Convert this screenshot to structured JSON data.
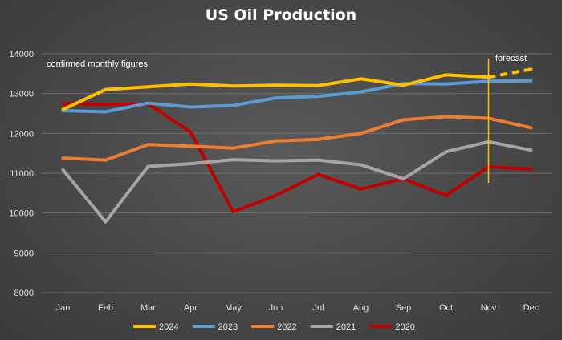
{
  "chart_data": {
    "type": "line",
    "title": "US Oil Production",
    "xlabel": "",
    "ylabel": "",
    "ylim": [
      8000,
      14000
    ],
    "yticks": [
      8000,
      9000,
      10000,
      11000,
      12000,
      13000,
      14000
    ],
    "categories": [
      "Jan",
      "Feb",
      "Mar",
      "Apr",
      "May",
      "Jun",
      "Jul",
      "Aug",
      "Sep",
      "Oct",
      "Nov",
      "Dec"
    ],
    "grid": true,
    "legend_position": "bottom",
    "series": [
      {
        "name": "2024",
        "color": "#ffc000",
        "values": [
          12600,
          13100,
          13170,
          13240,
          13190,
          13210,
          13200,
          13370,
          13210,
          13470,
          13410,
          13610
        ],
        "forecast_from_index": 10
      },
      {
        "name": "2023",
        "color": "#5b9bd5",
        "values": [
          12570,
          12540,
          12760,
          12660,
          12700,
          12890,
          12930,
          13040,
          13250,
          13240,
          13310,
          13320
        ]
      },
      {
        "name": "2022",
        "color": "#ed7d31",
        "values": [
          11380,
          11330,
          11720,
          11680,
          11630,
          11810,
          11850,
          12000,
          12340,
          12420,
          12380,
          12140
        ]
      },
      {
        "name": "2021",
        "color": "#a5a5a5",
        "values": [
          11080,
          9780,
          11170,
          11240,
          11340,
          11310,
          11330,
          11210,
          10860,
          11540,
          11790,
          11580
        ]
      },
      {
        "name": "2020",
        "color": "#c00000",
        "values": [
          12750,
          12730,
          12740,
          12030,
          10030,
          10440,
          10970,
          10600,
          10860,
          10440,
          11160,
          11100
        ]
      }
    ],
    "annotations": {
      "confirmed": "confirmed monthly figures",
      "forecast": "forecast",
      "forecast_line_after": "Nov",
      "forecast_line_color": "#ffc000"
    }
  }
}
